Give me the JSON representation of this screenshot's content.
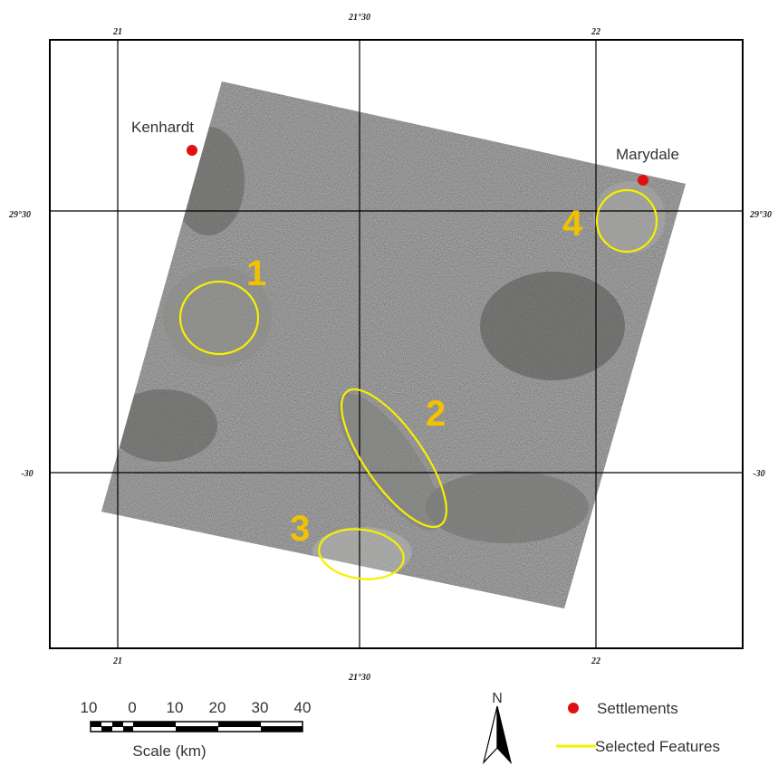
{
  "grid": {
    "top_labels": [
      "21",
      "21°30",
      "22"
    ],
    "bottom_labels": [
      "21",
      "21°30",
      "22"
    ],
    "left_labels": [
      "29°30",
      "-30"
    ],
    "right_labels": [
      "29°30",
      "-30"
    ]
  },
  "settlements": [
    {
      "name": "Kenhardt"
    },
    {
      "name": "Marydale"
    }
  ],
  "features": [
    {
      "id": "1"
    },
    {
      "id": "2"
    },
    {
      "id": "3"
    },
    {
      "id": "4"
    }
  ],
  "colors": {
    "settlement": "#e01010",
    "feature_outline": "#f5f000",
    "feature_number": "#f2c200",
    "imagery": "#2a2c2a"
  },
  "scale_bar": {
    "ticks": [
      "10",
      "0",
      "10",
      "20",
      "30",
      "40"
    ],
    "label": "Scale (km)"
  },
  "north_arrow": {
    "label": "N"
  },
  "legend": {
    "settlements_label": "Settlements",
    "features_label": "Selected Features"
  }
}
